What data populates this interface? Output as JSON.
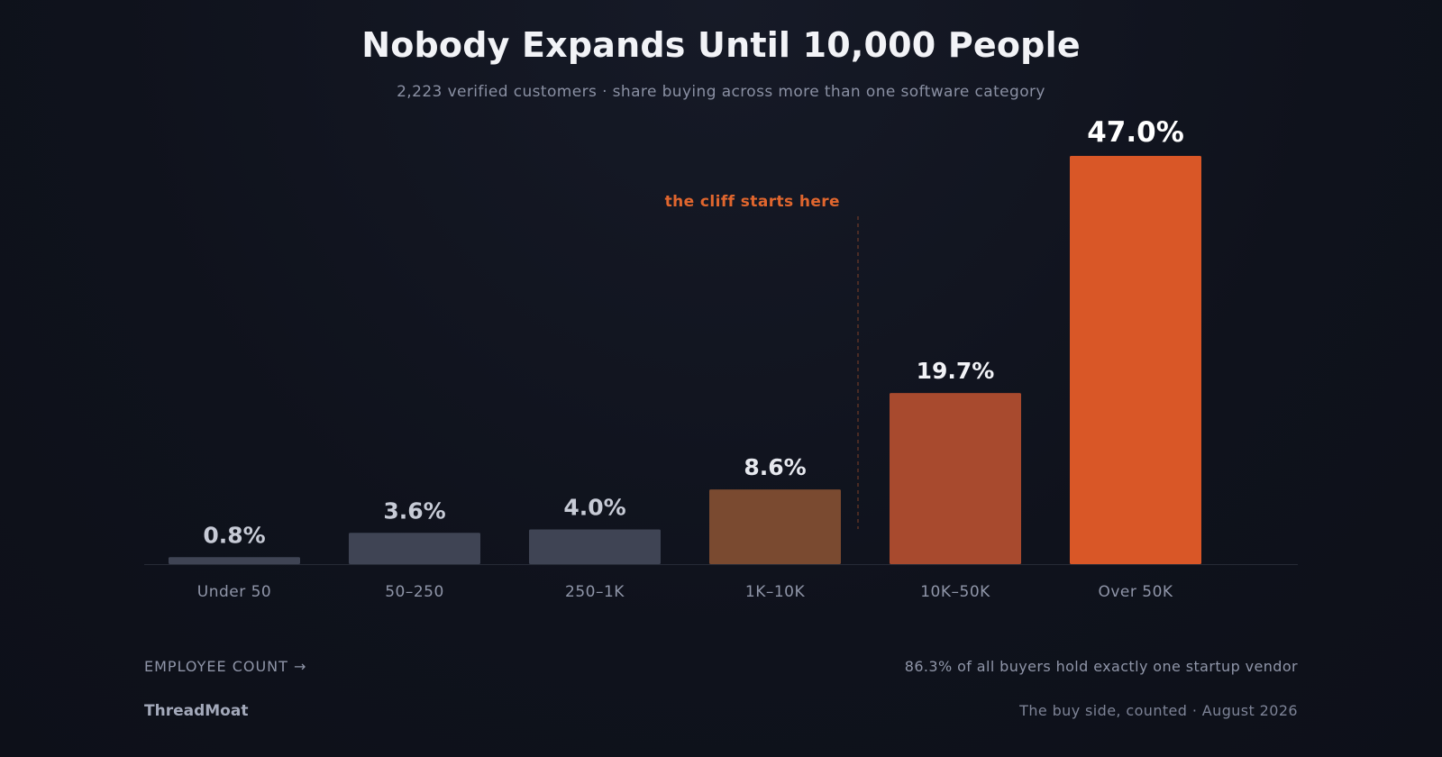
{
  "chart_data": {
    "type": "bar",
    "title": "Nobody Expands Until 10,000 People",
    "subtitle": "2,223 verified customers · share buying across more than one software category",
    "xlabel": "EMPLOYEE COUNT →",
    "ylabel": "",
    "categories": [
      "Under 50",
      "50–250",
      "250–1K",
      "1K–10K",
      "10K–50K",
      "Over 50K"
    ],
    "values": [
      0.8,
      3.6,
      4.0,
      8.6,
      19.7,
      47.0
    ],
    "value_labels": [
      "0.8%",
      "3.6%",
      "4.0%",
      "8.6%",
      "19.7%",
      "47.0%"
    ],
    "bar_colors": [
      "#3f4454",
      "#3f4454",
      "#3f4454",
      "#7a4a30",
      "#a84a2e",
      "#d95727"
    ],
    "label_colors": [
      "#c7cbd6",
      "#c7cbd6",
      "#c7cbd6",
      "#e6e8ee",
      "#f2f3f7",
      "#ffffff"
    ],
    "ylim": [
      0,
      47
    ],
    "grid": false,
    "annotation": {
      "text": "the cliff starts here",
      "position_between": [
        "1K–10K",
        "10K–50K"
      ],
      "color": "#e0662e"
    }
  },
  "footer": {
    "axis_caption": "EMPLOYEE COUNT →",
    "note": "86.3% of all buyers hold exactly one startup vendor",
    "brand": "ThreadMoat",
    "source": "The buy side, counted · August 2026"
  },
  "colors": {
    "background": "#0f121c",
    "accent": "#d95727",
    "baseline": "#262a36"
  }
}
